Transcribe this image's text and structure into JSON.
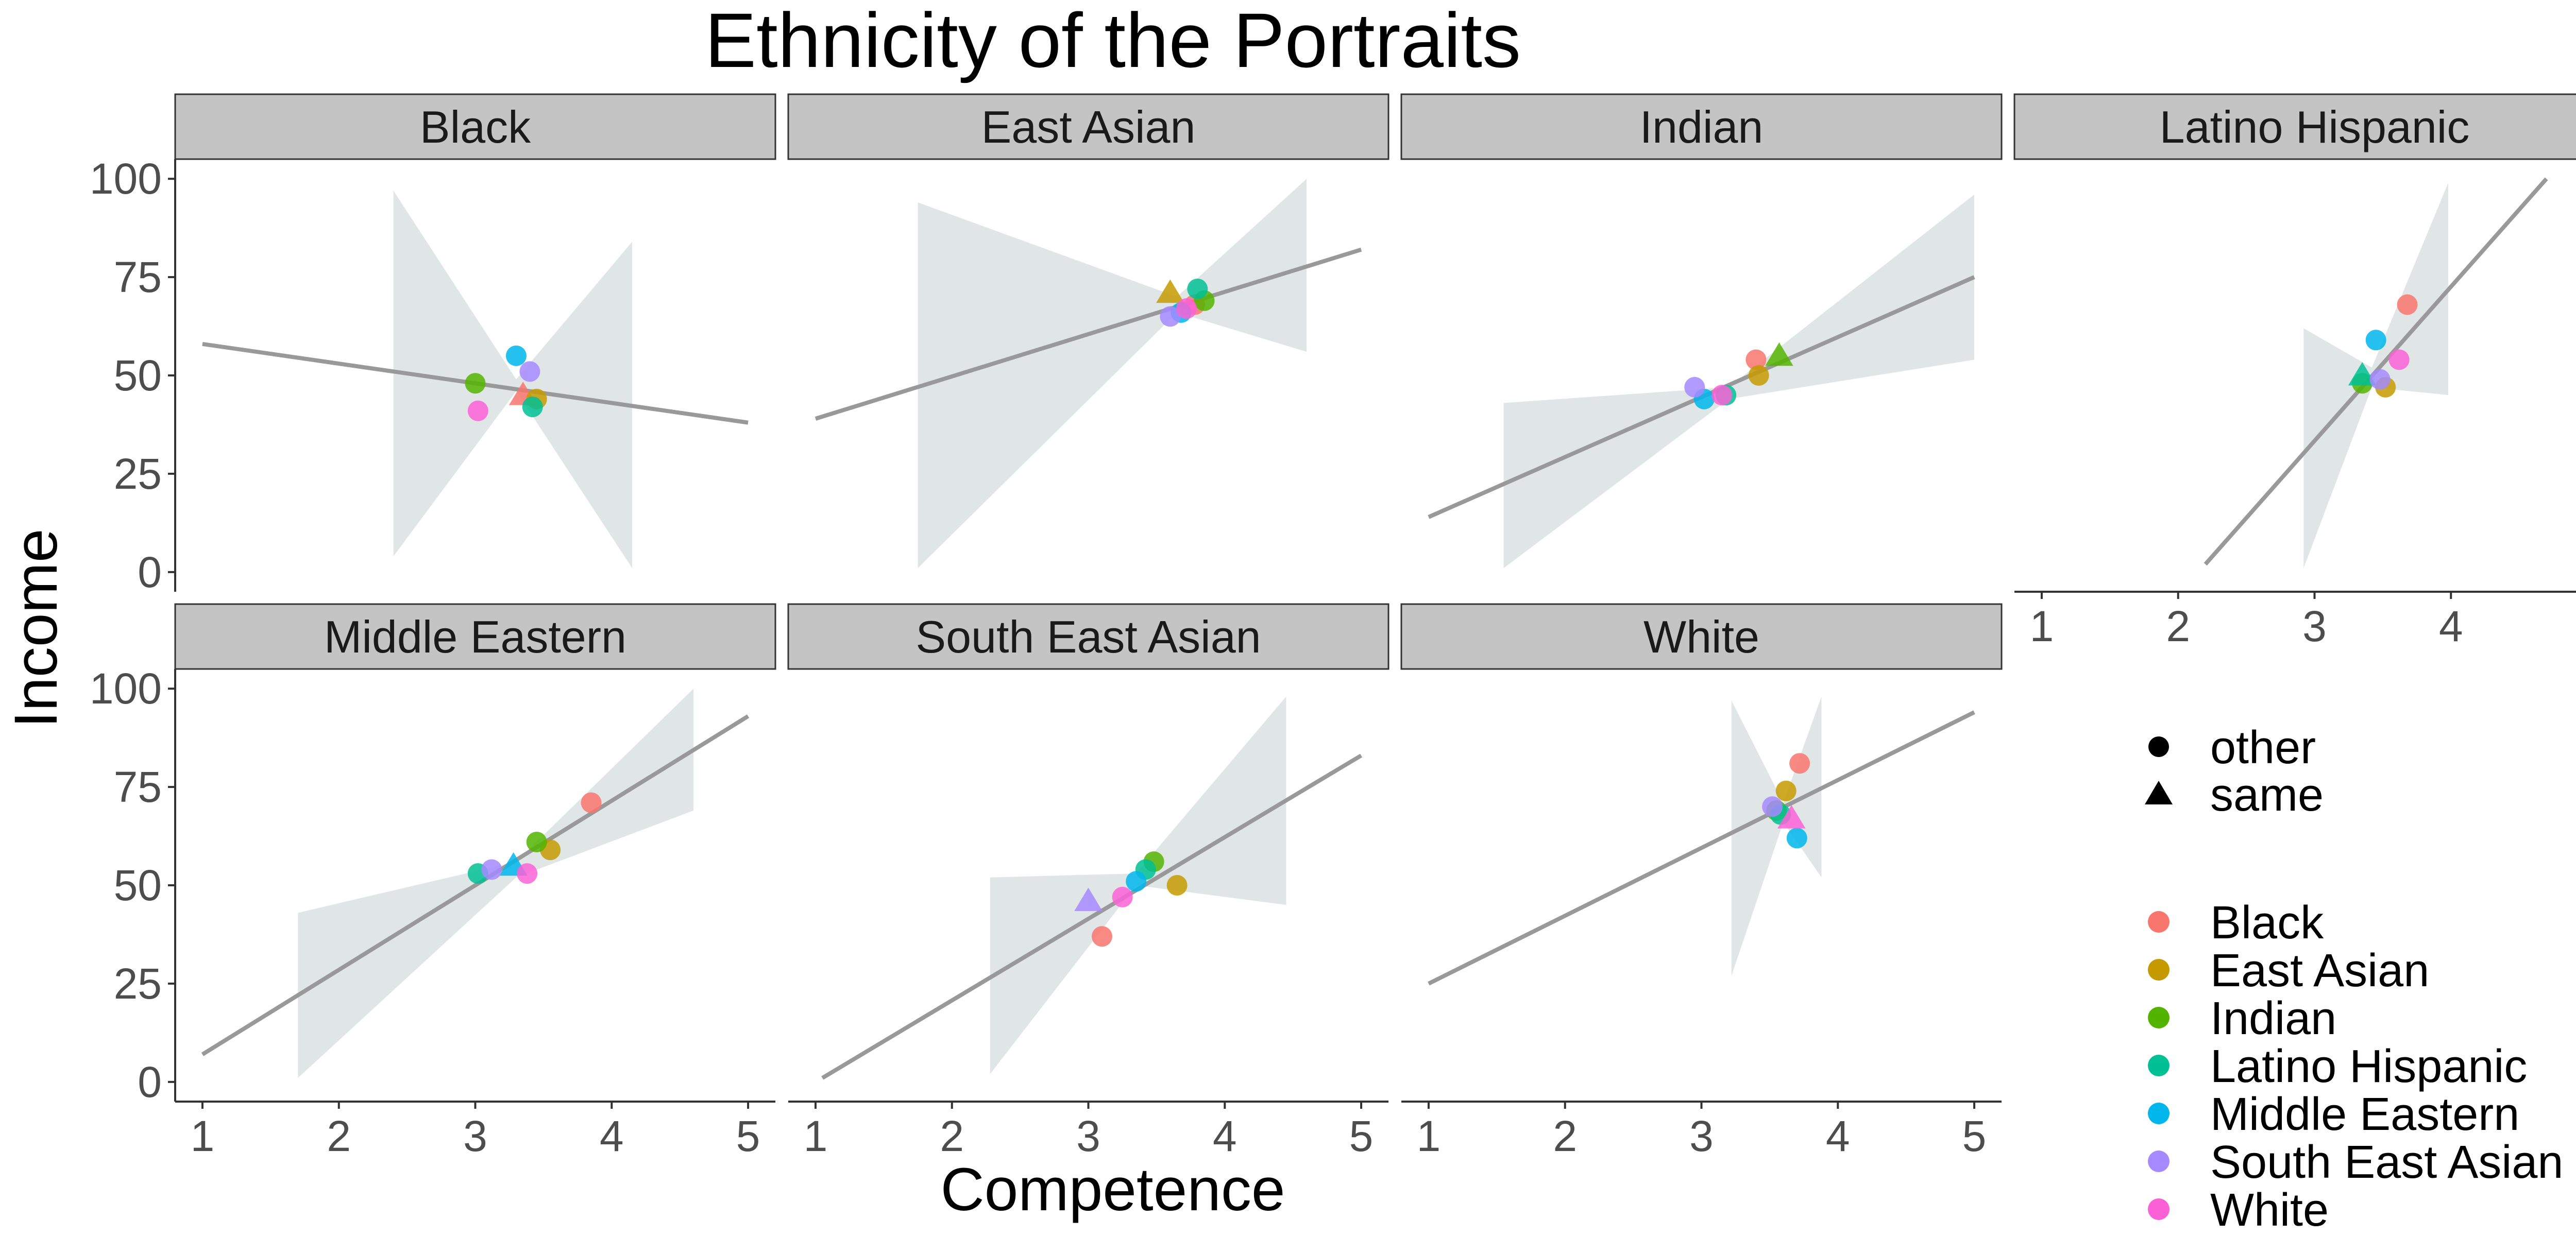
{
  "chart_data": {
    "type": "scatter",
    "title": "Ethnicity of the Portraits",
    "xlabel": "Competence",
    "ylabel": "Income",
    "xlim": [
      0.8,
      5.2
    ],
    "ylim": [
      -5,
      105
    ],
    "x_ticks": [
      1,
      2,
      3,
      4,
      5
    ],
    "y_ticks": [
      0,
      25,
      50,
      75,
      100
    ],
    "grid": false,
    "legend_position": "right",
    "shape_legend": [
      {
        "label": "other",
        "shape": "circle"
      },
      {
        "label": "same",
        "shape": "triangle"
      }
    ],
    "color_legend": [
      {
        "label": "Black",
        "color": "#F8766D"
      },
      {
        "label": "East Asian",
        "color": "#C49A00"
      },
      {
        "label": "Indian",
        "color": "#53B400"
      },
      {
        "label": "Latino Hispanic",
        "color": "#00C094"
      },
      {
        "label": "Middle Eastern",
        "color": "#00B6EB"
      },
      {
        "label": "South East Asian",
        "color": "#A58AFF"
      },
      {
        "label": "White",
        "color": "#FB61D7"
      }
    ],
    "panels": [
      {
        "name": "Black",
        "line": {
          "x": [
            1.0,
            5.0
          ],
          "y": [
            58,
            38
          ]
        },
        "ribbon": [
          {
            "x": 2.4,
            "lo": 4,
            "hi": 97
          },
          {
            "x": 3.3,
            "lo": 46,
            "hi": 49
          },
          {
            "x": 4.15,
            "lo": 1,
            "hi": 84
          }
        ],
        "points": [
          {
            "group": "Black",
            "shape": "triangle",
            "x": 3.35,
            "y": 45
          },
          {
            "group": "East Asian",
            "shape": "circle",
            "x": 3.45,
            "y": 44
          },
          {
            "group": "Indian",
            "shape": "circle",
            "x": 3.0,
            "y": 48
          },
          {
            "group": "Latino Hispanic",
            "shape": "circle",
            "x": 3.42,
            "y": 42
          },
          {
            "group": "Middle Eastern",
            "shape": "circle",
            "x": 3.3,
            "y": 55
          },
          {
            "group": "South East Asian",
            "shape": "circle",
            "x": 3.4,
            "y": 51
          },
          {
            "group": "White",
            "shape": "circle",
            "x": 3.02,
            "y": 41
          }
        ]
      },
      {
        "name": "East Asian",
        "line": {
          "x": [
            1.0,
            5.0
          ],
          "y": [
            39,
            82
          ]
        },
        "ribbon": [
          {
            "x": 1.75,
            "lo": 1,
            "hi": 94
          },
          {
            "x": 3.65,
            "lo": 66,
            "hi": 70
          },
          {
            "x": 4.6,
            "lo": 56,
            "hi": 100
          }
        ],
        "points": [
          {
            "group": "Black",
            "shape": "circle",
            "x": 3.78,
            "y": 68
          },
          {
            "group": "East Asian",
            "shape": "triangle",
            "x": 3.6,
            "y": 71
          },
          {
            "group": "Indian",
            "shape": "circle",
            "x": 3.85,
            "y": 69
          },
          {
            "group": "Latino Hispanic",
            "shape": "circle",
            "x": 3.8,
            "y": 72
          },
          {
            "group": "Middle Eastern",
            "shape": "circle",
            "x": 3.68,
            "y": 66
          },
          {
            "group": "South East Asian",
            "shape": "circle",
            "x": 3.6,
            "y": 65
          },
          {
            "group": "White",
            "shape": "circle",
            "x": 3.72,
            "y": 67
          }
        ]
      },
      {
        "name": "Indian",
        "line": {
          "x": [
            1.0,
            5.0
          ],
          "y": [
            14,
            75
          ]
        },
        "ribbon": [
          {
            "x": 1.55,
            "lo": 1,
            "hi": 43
          },
          {
            "x": 3.2,
            "lo": 44,
            "hi": 47
          },
          {
            "x": 5.0,
            "lo": 54,
            "hi": 96
          }
        ],
        "points": [
          {
            "group": "Black",
            "shape": "circle",
            "x": 3.4,
            "y": 54
          },
          {
            "group": "East Asian",
            "shape": "circle",
            "x": 3.42,
            "y": 50
          },
          {
            "group": "Indian",
            "shape": "triangle",
            "x": 3.57,
            "y": 55
          },
          {
            "group": "Latino Hispanic",
            "shape": "circle",
            "x": 3.18,
            "y": 45
          },
          {
            "group": "Middle Eastern",
            "shape": "circle",
            "x": 3.02,
            "y": 44
          },
          {
            "group": "South East Asian",
            "shape": "circle",
            "x": 2.95,
            "y": 47
          },
          {
            "group": "White",
            "shape": "circle",
            "x": 3.15,
            "y": 45
          }
        ]
      },
      {
        "name": "Latino Hispanic",
        "line": {
          "x": [
            2.2,
            4.7
          ],
          "y": [
            2,
            100
          ]
        },
        "ribbon": [
          {
            "x": 2.92,
            "lo": 1,
            "hi": 62
          },
          {
            "x": 3.42,
            "lo": 47,
            "hi": 52
          },
          {
            "x": 3.98,
            "lo": 45,
            "hi": 99
          }
        ],
        "points": [
          {
            "group": "Black",
            "shape": "circle",
            "x": 3.68,
            "y": 68
          },
          {
            "group": "East Asian",
            "shape": "circle",
            "x": 3.52,
            "y": 47
          },
          {
            "group": "Indian",
            "shape": "circle",
            "x": 3.35,
            "y": 48
          },
          {
            "group": "Latino Hispanic",
            "shape": "triangle",
            "x": 3.35,
            "y": 50
          },
          {
            "group": "Middle Eastern",
            "shape": "circle",
            "x": 3.45,
            "y": 59
          },
          {
            "group": "South East Asian",
            "shape": "circle",
            "x": 3.48,
            "y": 49
          },
          {
            "group": "White",
            "shape": "circle",
            "x": 3.62,
            "y": 54
          }
        ]
      },
      {
        "name": "Middle Eastern",
        "line": {
          "x": [
            1.0,
            5.0
          ],
          "y": [
            7,
            93
          ]
        },
        "ribbon": [
          {
            "x": 1.7,
            "lo": 1,
            "hi": 43
          },
          {
            "x": 3.3,
            "lo": 52,
            "hi": 56
          },
          {
            "x": 4.6,
            "lo": 69,
            "hi": 100
          }
        ],
        "points": [
          {
            "group": "Black",
            "shape": "circle",
            "x": 3.85,
            "y": 71
          },
          {
            "group": "East Asian",
            "shape": "circle",
            "x": 3.55,
            "y": 59
          },
          {
            "group": "Indian",
            "shape": "circle",
            "x": 3.45,
            "y": 61
          },
          {
            "group": "Latino Hispanic",
            "shape": "circle",
            "x": 3.02,
            "y": 53
          },
          {
            "group": "Middle Eastern",
            "shape": "triangle",
            "x": 3.28,
            "y": 55
          },
          {
            "group": "South East Asian",
            "shape": "circle",
            "x": 3.12,
            "y": 54
          },
          {
            "group": "White",
            "shape": "circle",
            "x": 3.38,
            "y": 53
          }
        ]
      },
      {
        "name": "South East Asian",
        "line": {
          "x": [
            1.05,
            5.0
          ],
          "y": [
            1,
            83
          ]
        },
        "ribbon": [
          {
            "x": 2.28,
            "lo": 2,
            "hi": 52
          },
          {
            "x": 3.35,
            "lo": 50,
            "hi": 53
          },
          {
            "x": 4.45,
            "lo": 45,
            "hi": 98
          }
        ],
        "points": [
          {
            "group": "Black",
            "shape": "circle",
            "x": 3.1,
            "y": 37
          },
          {
            "group": "East Asian",
            "shape": "circle",
            "x": 3.65,
            "y": 50
          },
          {
            "group": "Indian",
            "shape": "circle",
            "x": 3.48,
            "y": 56
          },
          {
            "group": "Latino Hispanic",
            "shape": "circle",
            "x": 3.42,
            "y": 54
          },
          {
            "group": "Middle Eastern",
            "shape": "circle",
            "x": 3.35,
            "y": 51
          },
          {
            "group": "South East Asian",
            "shape": "triangle",
            "x": 3.0,
            "y": 46
          },
          {
            "group": "White",
            "shape": "circle",
            "x": 3.25,
            "y": 47
          }
        ]
      },
      {
        "name": "White",
        "line": {
          "x": [
            1.0,
            5.0
          ],
          "y": [
            25,
            94
          ]
        },
        "ribbon": [
          {
            "x": 3.22,
            "lo": 27,
            "hi": 97
          },
          {
            "x": 3.6,
            "lo": 66,
            "hi": 71
          },
          {
            "x": 3.88,
            "lo": 52,
            "hi": 98
          }
        ],
        "points": [
          {
            "group": "Black",
            "shape": "circle",
            "x": 3.72,
            "y": 81
          },
          {
            "group": "East Asian",
            "shape": "circle",
            "x": 3.62,
            "y": 74
          },
          {
            "group": "Indian",
            "shape": "circle",
            "x": 3.55,
            "y": 69
          },
          {
            "group": "Latino Hispanic",
            "shape": "circle",
            "x": 3.58,
            "y": 68
          },
          {
            "group": "Middle Eastern",
            "shape": "circle",
            "x": 3.7,
            "y": 62
          },
          {
            "group": "South East Asian",
            "shape": "circle",
            "x": 3.52,
            "y": 70
          },
          {
            "group": "White",
            "shape": "triangle",
            "x": 3.66,
            "y": 67
          }
        ]
      }
    ]
  }
}
